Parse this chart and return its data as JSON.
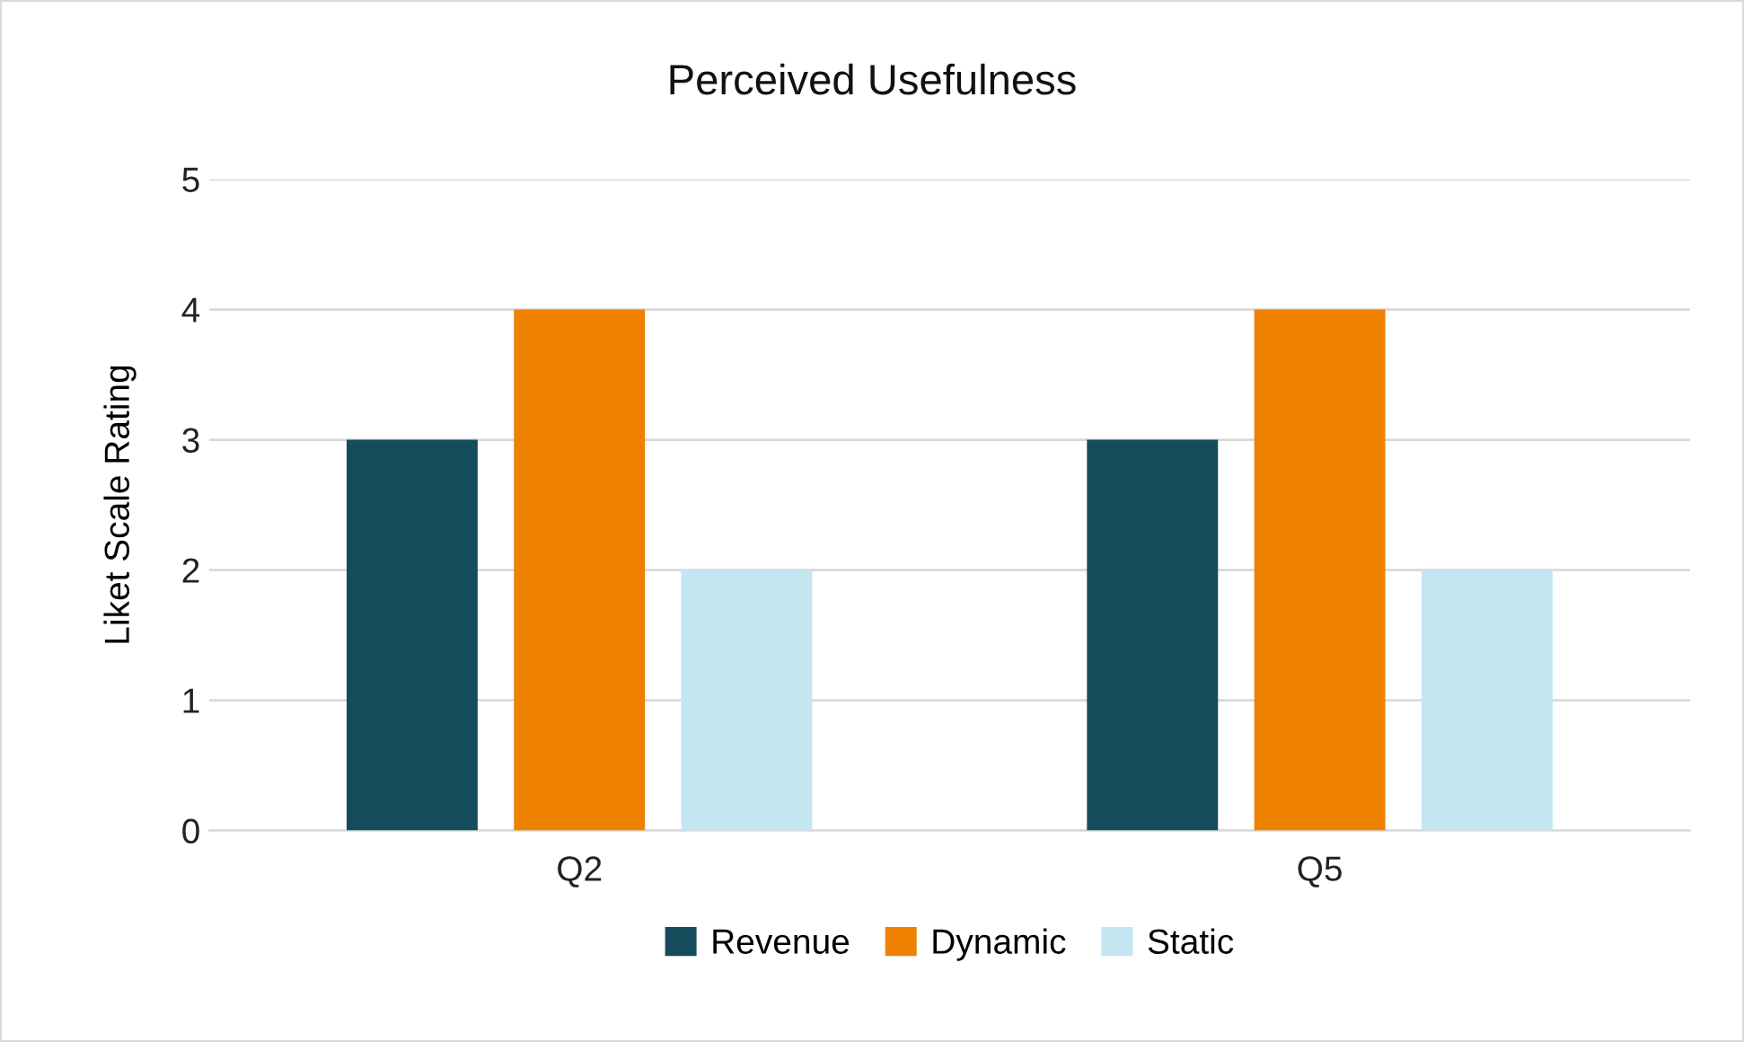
{
  "chart_data": {
    "type": "bar",
    "title": "Perceived Usefulness",
    "ylabel": "Liket Scale Rating",
    "categories": [
      "Q2",
      "Q5"
    ],
    "series": [
      {
        "name": "Revenue",
        "color": "#154c5b",
        "values": [
          3,
          3
        ]
      },
      {
        "name": "Dynamic",
        "color": "#ee8100",
        "values": [
          4,
          4
        ]
      },
      {
        "name": "Static",
        "color": "#c3e6f1",
        "values": [
          2,
          2
        ]
      }
    ],
    "ylim": [
      0,
      5
    ],
    "yticks": [
      0,
      1,
      2,
      3,
      4,
      5
    ],
    "grid": "y",
    "legend": "bottom"
  }
}
